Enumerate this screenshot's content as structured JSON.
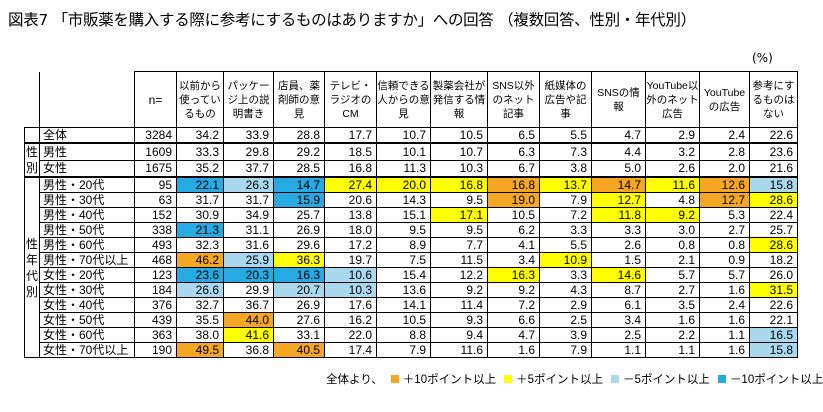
{
  "title": "図表7 「市販薬を購入する際に参考にするものはありますか」への回答 （複数回答、性別・年代別）",
  "unit": "(%)",
  "colors": {
    "plus10": "#f5a623",
    "plus5": "#ffff00",
    "minus5": "#a9d8ef",
    "minus10": "#27a9e1"
  },
  "chart_data": {
    "type": "table",
    "n_header": "n=",
    "columns": [
      "以前から使っているもの",
      "パッケージ上の説明書き",
      "店員、薬剤師の意見",
      "テレビ・ラジオのCM",
      "信頼できる人からの意見",
      "製薬会社が発信する情報",
      "SNS以外のネット記事",
      "紙媒体の広告や記事",
      "SNSの情報",
      "YouTube以外のネット広告",
      "YouTubeの広告",
      "参考にするものはない"
    ],
    "groups": [
      {
        "label": "",
        "rows": [
          {
            "label": "全体",
            "n": 3284,
            "values": [
              34.2,
              33.9,
              28.8,
              17.7,
              10.7,
              10.5,
              6.5,
              5.5,
              4.7,
              2.9,
              2.4,
              22.6
            ],
            "flags": [
              "",
              "",
              "",
              "",
              "",
              "",
              "",
              "",
              "",
              "",
              "",
              ""
            ]
          }
        ]
      },
      {
        "label": "性別",
        "rows": [
          {
            "label": "男性",
            "n": 1609,
            "values": [
              33.3,
              29.8,
              29.2,
              18.5,
              10.1,
              10.7,
              6.3,
              7.3,
              4.4,
              3.2,
              2.8,
              23.6
            ],
            "flags": [
              "",
              "",
              "",
              "",
              "",
              "",
              "",
              "",
              "",
              "",
              "",
              ""
            ]
          },
          {
            "label": "女性",
            "n": 1675,
            "values": [
              35.2,
              37.7,
              28.5,
              16.8,
              11.3,
              10.3,
              6.7,
              3.8,
              5.0,
              2.6,
              2.0,
              21.6
            ],
            "flags": [
              "",
              "",
              "",
              "",
              "",
              "",
              "",
              "",
              "",
              "",
              "",
              ""
            ]
          }
        ]
      },
      {
        "label": "性年代別",
        "rows": [
          {
            "label": "男性・20代",
            "n": 95,
            "values": [
              22.1,
              26.3,
              14.7,
              27.4,
              20.0,
              16.8,
              16.8,
              13.7,
              14.7,
              11.6,
              12.6,
              15.8
            ],
            "flags": [
              "m10",
              "m5",
              "m10",
              "p5",
              "p5",
              "p5",
              "p10",
              "p5",
              "p10",
              "p5",
              "p10",
              "m5"
            ]
          },
          {
            "label": "男性・30代",
            "n": 63,
            "values": [
              31.7,
              31.7,
              15.9,
              20.6,
              14.3,
              9.5,
              19.0,
              7.9,
              12.7,
              4.8,
              12.7,
              28.6
            ],
            "flags": [
              "",
              "",
              "m10",
              "",
              "",
              "",
              "p10",
              "",
              "p5",
              "",
              "p10",
              "p5"
            ]
          },
          {
            "label": "男性・40代",
            "n": 152,
            "values": [
              30.9,
              34.9,
              25.7,
              13.8,
              15.1,
              17.1,
              10.5,
              7.2,
              11.8,
              9.2,
              5.3,
              22.4
            ],
            "flags": [
              "",
              "",
              "",
              "",
              "",
              "p5",
              "",
              "",
              "p5",
              "p5",
              "",
              ""
            ]
          },
          {
            "label": "男性・50代",
            "n": 338,
            "values": [
              21.3,
              31.1,
              26.9,
              18.0,
              9.5,
              9.5,
              6.2,
              3.3,
              3.3,
              3.0,
              2.7,
              25.7
            ],
            "flags": [
              "m10",
              "",
              "",
              "",
              "",
              "",
              "",
              "",
              "",
              "",
              "",
              ""
            ]
          },
          {
            "label": "男性・60代",
            "n": 493,
            "values": [
              32.3,
              31.6,
              29.6,
              17.2,
              8.9,
              7.7,
              4.1,
              5.5,
              2.6,
              0.8,
              0.8,
              28.6
            ],
            "flags": [
              "",
              "",
              "",
              "",
              "",
              "",
              "",
              "",
              "",
              "",
              "",
              "p5"
            ]
          },
          {
            "label": "男性・70代以上",
            "n": 468,
            "values": [
              46.2,
              25.9,
              36.3,
              19.7,
              7.5,
              11.5,
              3.4,
              10.9,
              1.5,
              2.1,
              0.9,
              18.2
            ],
            "flags": [
              "p10",
              "m5",
              "p5",
              "",
              "",
              "",
              "",
              "p5",
              "",
              "",
              "",
              ""
            ]
          },
          {
            "label": "女性・20代",
            "n": 123,
            "values": [
              23.6,
              20.3,
              16.3,
              10.6,
              15.4,
              12.2,
              16.3,
              3.3,
              14.6,
              5.7,
              5.7,
              26.0
            ],
            "flags": [
              "m10",
              "m10",
              "m10",
              "m5",
              "",
              "",
              "p5",
              "",
              "p5",
              "",
              "",
              ""
            ]
          },
          {
            "label": "女性・30代",
            "n": 184,
            "values": [
              26.6,
              29.9,
              20.7,
              10.3,
              13.6,
              9.2,
              9.2,
              4.3,
              8.7,
              2.7,
              1.6,
              31.5
            ],
            "flags": [
              "m5",
              "",
              "m5",
              "m5",
              "",
              "",
              "",
              "",
              "",
              "",
              "",
              "p5"
            ]
          },
          {
            "label": "女性・40代",
            "n": 376,
            "values": [
              32.7,
              36.7,
              26.9,
              17.6,
              14.1,
              11.4,
              7.2,
              2.9,
              6.1,
              3.5,
              2.4,
              22.6
            ],
            "flags": [
              "",
              "",
              "",
              "",
              "",
              "",
              "",
              "",
              "",
              "",
              "",
              ""
            ]
          },
          {
            "label": "女性・50代",
            "n": 439,
            "values": [
              35.5,
              44.0,
              27.6,
              16.2,
              10.5,
              9.3,
              6.6,
              2.5,
              3.4,
              1.6,
              1.6,
              22.1
            ],
            "flags": [
              "",
              "p10",
              "",
              "",
              "",
              "",
              "",
              "",
              "",
              "",
              "",
              ""
            ]
          },
          {
            "label": "女性・60代",
            "n": 363,
            "values": [
              38.0,
              41.6,
              33.1,
              22.0,
              8.8,
              9.4,
              4.7,
              3.9,
              2.5,
              2.2,
              1.1,
              16.5
            ],
            "flags": [
              "",
              "p5",
              "",
              "",
              "",
              "",
              "",
              "",
              "",
              "",
              "",
              "m5"
            ]
          },
          {
            "label": "女性・70代以上",
            "n": 190,
            "values": [
              49.5,
              36.8,
              40.5,
              17.4,
              7.9,
              11.6,
              1.6,
              7.9,
              1.1,
              1.1,
              1.6,
              15.8
            ],
            "flags": [
              "p10",
              "",
              "p10",
              "",
              "",
              "",
              "",
              "",
              "",
              "",
              "",
              "m5"
            ]
          }
        ]
      }
    ]
  },
  "legend": {
    "prefix": "全体より、",
    "items": [
      {
        "key": "p10",
        "label": "＋10ポイント以上"
      },
      {
        "key": "p5",
        "label": "＋5ポイント以上"
      },
      {
        "key": "m5",
        "label": "－5ポイント以上"
      },
      {
        "key": "m10",
        "label": "－10ポイント以上"
      }
    ]
  }
}
